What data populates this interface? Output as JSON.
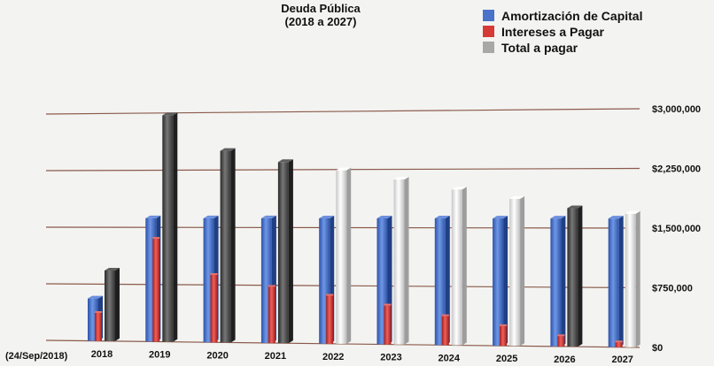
{
  "chart_data": {
    "type": "bar",
    "title": "Deuda Pública",
    "subtitle": "(2018 a 2027)",
    "category_prefix": "(24/Sep/2018)",
    "categories": [
      "2018",
      "2019",
      "2020",
      "2021",
      "2022",
      "2023",
      "2024",
      "2025",
      "2026",
      "2027"
    ],
    "series": [
      {
        "name": "Amortización de Capital",
        "color": "#4a72c8",
        "values": [
          560000,
          1620000,
          1620000,
          1620000,
          1620000,
          1620000,
          1620000,
          1620000,
          1620000,
          1620000
        ]
      },
      {
        "name": "Intereses a Pagar",
        "color": "#d63a36",
        "values": [
          370000,
          1350000,
          880000,
          730000,
          620000,
          500000,
          370000,
          250000,
          130000,
          60000
        ]
      },
      {
        "name": "Total a pagar",
        "color": "#a8a8a8",
        "values": [
          930000,
          2970000,
          2500000,
          2350000,
          2240000,
          2120000,
          1990000,
          1870000,
          1750000,
          1680000
        ]
      }
    ],
    "total_bar_colors": [
      "#505050",
      "#505050",
      "#505050",
      "#505050",
      "#f2f2f2",
      "#f2f2f2",
      "#f2f2f2",
      "#f2f2f2",
      "#505050",
      "#f2f2f2"
    ],
    "y_ticks": [
      {
        "value": 0,
        "label": "$0"
      },
      {
        "value": 750000,
        "label": "$750,000"
      },
      {
        "value": 1500000,
        "label": "$1,500,000"
      },
      {
        "value": 2250000,
        "label": "$2,250,000"
      },
      {
        "value": 3000000,
        "label": "$3,000,000"
      }
    ],
    "ylim": [
      0,
      3000000
    ],
    "grid": true,
    "gridline_color": "#8a5a4a",
    "legend_position": "top-right"
  }
}
